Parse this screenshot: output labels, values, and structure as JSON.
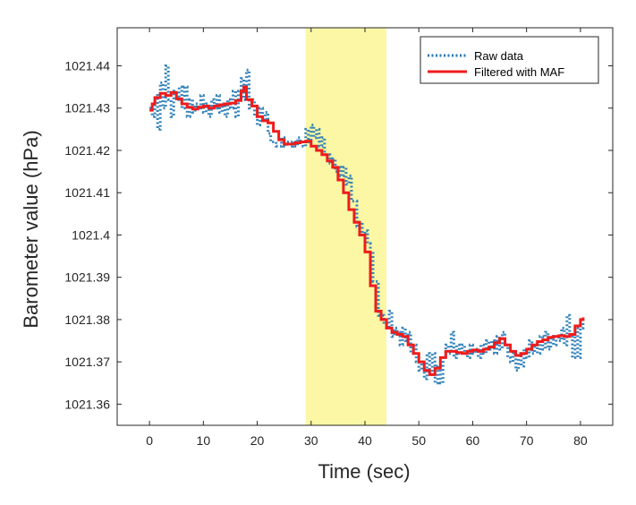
{
  "chart_data": {
    "type": "line",
    "xlabel": "Time (sec)",
    "ylabel": "Barometer value (hPa)",
    "xlim": [
      -6,
      86
    ],
    "ylim": [
      1021.355,
      1021.449
    ],
    "x_ticks": [
      0,
      10,
      20,
      30,
      40,
      50,
      60,
      70,
      80
    ],
    "x_tick_labels": [
      "0",
      "10",
      "20",
      "30",
      "40",
      "50",
      "60",
      "70",
      "80"
    ],
    "y_ticks": [
      1021.36,
      1021.37,
      1021.38,
      1021.39,
      1021.4,
      1021.41,
      1021.42,
      1021.43,
      1021.44
    ],
    "y_tick_labels": [
      "1021.36",
      "1021.37",
      "1021.38",
      "1021.39",
      "1021.4",
      "1021.41",
      "1021.42",
      "1021.43",
      "1021.44"
    ],
    "grid": false,
    "legend_position": "top-right",
    "highlight_region": {
      "x_start": 29,
      "x_end": 44,
      "color": "#fbf7a5"
    },
    "series": [
      {
        "name": "Raw data",
        "style": "dotted",
        "color": "#1f77b4",
        "points": [
          [
            0,
            1021.43
          ],
          [
            0.5,
            1021.428
          ],
          [
            1,
            1021.433
          ],
          [
            1.5,
            1021.425
          ],
          [
            2,
            1021.436
          ],
          [
            2.5,
            1021.43
          ],
          [
            3,
            1021.44
          ],
          [
            3.5,
            1021.432
          ],
          [
            4,
            1021.428
          ],
          [
            4.5,
            1021.434
          ],
          [
            5,
            1021.432
          ],
          [
            5.5,
            1021.435
          ],
          [
            6,
            1021.43
          ],
          [
            6.5,
            1021.435
          ],
          [
            7,
            1021.428
          ],
          [
            7.5,
            1021.432
          ],
          [
            8,
            1021.429
          ],
          [
            8.5,
            1021.431
          ],
          [
            9,
            1021.43
          ],
          [
            9.5,
            1021.433
          ],
          [
            10,
            1021.429
          ],
          [
            10.5,
            1021.431
          ],
          [
            11,
            1021.428
          ],
          [
            11.5,
            1021.432
          ],
          [
            12,
            1021.43
          ],
          [
            12.5,
            1021.433
          ],
          [
            13,
            1021.429
          ],
          [
            13.5,
            1021.431
          ],
          [
            14,
            1021.428
          ],
          [
            14.5,
            1021.432
          ],
          [
            15,
            1021.43
          ],
          [
            15.5,
            1021.434
          ],
          [
            16,
            1021.428
          ],
          [
            16.5,
            1021.434
          ],
          [
            17,
            1021.437
          ],
          [
            17.5,
            1021.432
          ],
          [
            18,
            1021.439
          ],
          [
            18.5,
            1021.43
          ],
          [
            19,
            1021.432
          ],
          [
            19.5,
            1021.428
          ],
          [
            20,
            1021.426
          ],
          [
            20.5,
            1021.43
          ],
          [
            21,
            1021.427
          ],
          [
            21.5,
            1021.429
          ],
          [
            22,
            1021.424
          ],
          [
            22.5,
            1021.422
          ],
          [
            23,
            1021.422
          ],
          [
            23.5,
            1021.421
          ],
          [
            24,
            1021.421
          ],
          [
            24.5,
            1021.423
          ],
          [
            25,
            1021.421
          ],
          [
            25.5,
            1021.422
          ],
          [
            26,
            1021.421
          ],
          [
            26.5,
            1021.422
          ],
          [
            27,
            1021.421
          ],
          [
            27.5,
            1021.423
          ],
          [
            28,
            1021.422
          ],
          [
            28.5,
            1021.421
          ],
          [
            29,
            1021.425
          ],
          [
            29.5,
            1021.422
          ],
          [
            30,
            1021.426
          ],
          [
            30.5,
            1021.423
          ],
          [
            31,
            1021.425
          ],
          [
            31.5,
            1021.421
          ],
          [
            32,
            1021.423
          ],
          [
            32.5,
            1021.419
          ],
          [
            33,
            1021.419
          ],
          [
            33.5,
            1021.417
          ],
          [
            34,
            1021.418
          ],
          [
            34.5,
            1021.415
          ],
          [
            35,
            1021.416
          ],
          [
            35.5,
            1021.414
          ],
          [
            36,
            1021.416
          ],
          [
            36.5,
            1021.412
          ],
          [
            37,
            1021.414
          ],
          [
            37.5,
            1021.408
          ],
          [
            38,
            1021.408
          ],
          [
            38.5,
            1021.402
          ],
          [
            39,
            1021.403
          ],
          [
            39.5,
            1021.4
          ],
          [
            40,
            1021.401
          ],
          [
            40.5,
            1021.398
          ],
          [
            41,
            1021.396
          ],
          [
            41.5,
            1021.389
          ],
          [
            42,
            1021.389
          ],
          [
            42.5,
            1021.381
          ],
          [
            43,
            1021.381
          ],
          [
            43.5,
            1021.379
          ],
          [
            44,
            1021.378
          ],
          [
            44.5,
            1021.382
          ],
          [
            45,
            1021.376
          ],
          [
            45.5,
            1021.378
          ],
          [
            46,
            1021.377
          ],
          [
            46.5,
            1021.374
          ],
          [
            47,
            1021.378
          ],
          [
            47.5,
            1021.375
          ],
          [
            48,
            1021.377
          ],
          [
            48.5,
            1021.372
          ],
          [
            49,
            1021.374
          ],
          [
            49.5,
            1021.37
          ],
          [
            50,
            1021.368
          ],
          [
            50.5,
            1021.37
          ],
          [
            51,
            1021.366
          ],
          [
            51.5,
            1021.372
          ],
          [
            52,
            1021.367
          ],
          [
            52.5,
            1021.372
          ],
          [
            53,
            1021.365
          ],
          [
            53.5,
            1021.369
          ],
          [
            54,
            1021.365
          ],
          [
            54.5,
            1021.371
          ],
          [
            55,
            1021.374
          ],
          [
            55.5,
            1021.372
          ],
          [
            56,
            1021.377
          ],
          [
            56.5,
            1021.371
          ],
          [
            57,
            1021.374
          ],
          [
            57.5,
            1021.372
          ],
          [
            58,
            1021.374
          ],
          [
            58.5,
            1021.372
          ],
          [
            59,
            1021.371
          ],
          [
            59.5,
            1021.374
          ],
          [
            60,
            1021.372
          ],
          [
            60.5,
            1021.373
          ],
          [
            61,
            1021.371
          ],
          [
            61.5,
            1021.374
          ],
          [
            62,
            1021.372
          ],
          [
            62.5,
            1021.375
          ],
          [
            63,
            1021.373
          ],
          [
            63.5,
            1021.375
          ],
          [
            64,
            1021.372
          ],
          [
            64.5,
            1021.376
          ],
          [
            65,
            1021.373
          ],
          [
            65.5,
            1021.377
          ],
          [
            66,
            1021.374
          ],
          [
            66.5,
            1021.371
          ],
          [
            67,
            1021.37
          ],
          [
            67.5,
            1021.372
          ],
          [
            68,
            1021.368
          ],
          [
            68.5,
            1021.372
          ],
          [
            69,
            1021.369
          ],
          [
            69.5,
            1021.373
          ],
          [
            70,
            1021.371
          ],
          [
            70.5,
            1021.375
          ],
          [
            71,
            1021.372
          ],
          [
            71.5,
            1021.374
          ],
          [
            72,
            1021.372
          ],
          [
            72.5,
            1021.376
          ],
          [
            73,
            1021.373
          ],
          [
            73.5,
            1021.377
          ],
          [
            74,
            1021.373
          ],
          [
            74.5,
            1021.376
          ],
          [
            75,
            1021.374
          ],
          [
            75.5,
            1021.376
          ],
          [
            76,
            1021.375
          ],
          [
            76.5,
            1021.378
          ],
          [
            77,
            1021.374
          ],
          [
            77.5,
            1021.381
          ],
          [
            78,
            1021.376
          ],
          [
            78.5,
            1021.371
          ],
          [
            79,
            1021.378
          ],
          [
            79.5,
            1021.371
          ],
          [
            80,
            1021.378
          ],
          [
            80.5,
            1021.38
          ]
        ]
      },
      {
        "name": "Filtered with MAF",
        "style": "solid",
        "color": "#ee1c1c",
        "points": [
          [
            0,
            1021.4295
          ],
          [
            0.5,
            1021.431
          ],
          [
            1,
            1021.4325
          ],
          [
            2,
            1021.4335
          ],
          [
            3,
            1021.433
          ],
          [
            4,
            1021.4337
          ],
          [
            5,
            1021.4322
          ],
          [
            6,
            1021.431
          ],
          [
            7,
            1021.4302
          ],
          [
            8,
            1021.4298
          ],
          [
            9,
            1021.4302
          ],
          [
            10,
            1021.4305
          ],
          [
            11,
            1021.43
          ],
          [
            12,
            1021.4305
          ],
          [
            13,
            1021.4308
          ],
          [
            14,
            1021.431
          ],
          [
            15,
            1021.4312
          ],
          [
            16,
            1021.4318
          ],
          [
            17,
            1021.434
          ],
          [
            17.5,
            1021.435
          ],
          [
            18,
            1021.432
          ],
          [
            19,
            1021.4305
          ],
          [
            20,
            1021.428
          ],
          [
            21,
            1021.427
          ],
          [
            22,
            1021.4265
          ],
          [
            23,
            1021.4245
          ],
          [
            24,
            1021.4225
          ],
          [
            25,
            1021.4215
          ],
          [
            26,
            1021.4215
          ],
          [
            27,
            1021.4218
          ],
          [
            28,
            1021.422
          ],
          [
            29,
            1021.4222
          ],
          [
            30,
            1021.421
          ],
          [
            31,
            1021.42
          ],
          [
            32,
            1021.419
          ],
          [
            33,
            1021.4175
          ],
          [
            34,
            1021.416
          ],
          [
            35,
            1021.413
          ],
          [
            36,
            1021.41
          ],
          [
            37,
            1021.406
          ],
          [
            38,
            1021.403
          ],
          [
            39,
            1021.4
          ],
          [
            40,
            1021.396
          ],
          [
            41,
            1021.388
          ],
          [
            42,
            1021.382
          ],
          [
            43,
            1021.38
          ],
          [
            44,
            1021.378
          ],
          [
            45,
            1021.377
          ],
          [
            46,
            1021.3765
          ],
          [
            47,
            1021.376
          ],
          [
            48,
            1021.374
          ],
          [
            49,
            1021.372
          ],
          [
            50,
            1021.37
          ],
          [
            51,
            1021.368
          ],
          [
            52,
            1021.367
          ],
          [
            53,
            1021.3685
          ],
          [
            54,
            1021.371
          ],
          [
            55,
            1021.3725
          ],
          [
            56,
            1021.3725
          ],
          [
            57,
            1021.3722
          ],
          [
            58,
            1021.372
          ],
          [
            59,
            1021.3725
          ],
          [
            60,
            1021.3728
          ],
          [
            61,
            1021.3725
          ],
          [
            62,
            1021.373
          ],
          [
            63,
            1021.3735
          ],
          [
            64,
            1021.3745
          ],
          [
            65,
            1021.3755
          ],
          [
            66,
            1021.374
          ],
          [
            67,
            1021.3725
          ],
          [
            68,
            1021.3715
          ],
          [
            69,
            1021.372
          ],
          [
            70,
            1021.373
          ],
          [
            71,
            1021.374
          ],
          [
            72,
            1021.3748
          ],
          [
            73,
            1021.3752
          ],
          [
            74,
            1021.3758
          ],
          [
            75,
            1021.376
          ],
          [
            76,
            1021.3762
          ],
          [
            77,
            1021.376
          ],
          [
            78,
            1021.3765
          ],
          [
            79,
            1021.3785
          ],
          [
            80,
            1021.38
          ],
          [
            80.5,
            1021.3805
          ]
        ]
      }
    ]
  }
}
